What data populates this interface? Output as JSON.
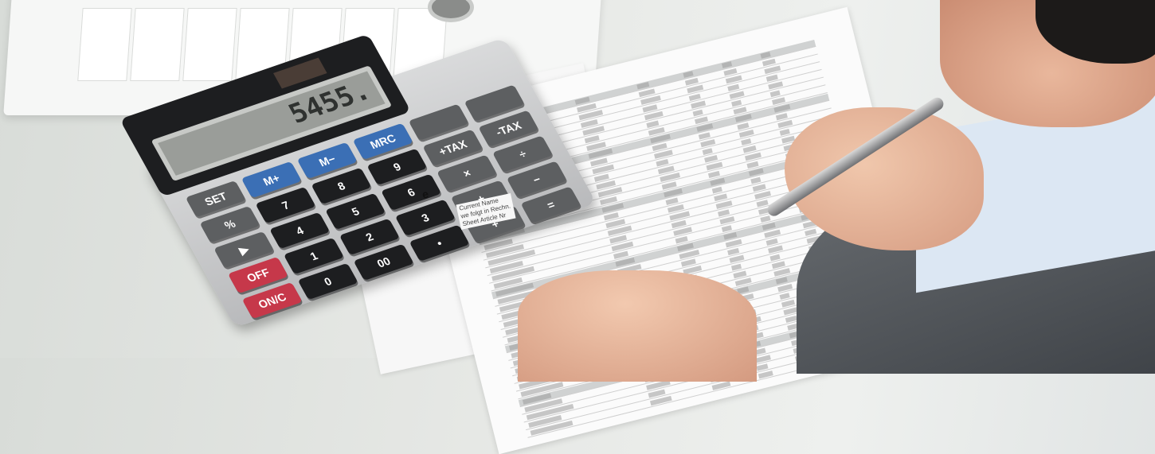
{
  "scene": "Accountant calculating figures on a spreadsheet with a desktop calculator",
  "calculator": {
    "display": "5455.",
    "keys": [
      [
        "SET",
        "M+",
        "M−",
        "MRC",
        "",
        ""
      ],
      [
        "%",
        "7",
        "8",
        "9",
        "+TAX",
        "-TAX"
      ],
      [
        "▶",
        "4",
        "5",
        "6",
        "×",
        "÷"
      ],
      [
        "OFF",
        "1",
        "2",
        "3",
        "+",
        "−"
      ],
      [
        "ON/C",
        "0",
        "00",
        "•",
        "+",
        "="
      ]
    ]
  },
  "papers": {
    "note_title": "e",
    "note_lines": [
      "Current Name",
      "we folgt in Rechn.",
      "Sheet   Article Nr"
    ]
  },
  "colors": {
    "memory_keys": "#3b6fb5",
    "power_keys": "#c6384a",
    "number_keys": "#1d1e20",
    "suit": "#4f5358",
    "shirt": "#dce7f3"
  }
}
